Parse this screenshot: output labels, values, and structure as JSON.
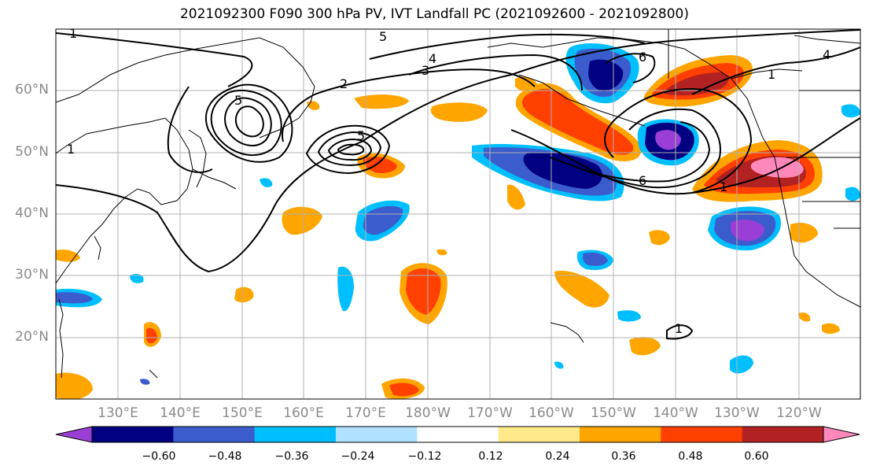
{
  "title": "2021092300 F090 300 hPa PV, IVT Landfall PC (2021092600 - 2021092800)",
  "lat_labels": [
    "60°N",
    "50°N",
    "40°N",
    "30°N",
    "20°N"
  ],
  "lon_labels": [
    "130°E",
    "140°E",
    "150°E",
    "160°E",
    "170°E",
    "180°W",
    "170°W",
    "160°W",
    "150°W",
    "140°W",
    "130°W",
    "120°W"
  ],
  "colorbar": {
    "colors": [
      "#9a3fd6",
      "#000080",
      "#3a5ccc",
      "#00bfff",
      "#b0e2ff",
      "#ffffff",
      "#ffe98a",
      "#ffa500",
      "#ff4000",
      "#b22222",
      "#ff88bb"
    ],
    "tick_labels": [
      "−0.60",
      "−0.48",
      "−0.36",
      "−0.24",
      "−0.12",
      "0.12",
      "0.24",
      "0.36",
      "0.48",
      "0.60"
    ]
  },
  "contour_labels": {
    "pv_values": [
      "1",
      "2",
      "3",
      "4",
      "5",
      "6"
    ]
  }
}
